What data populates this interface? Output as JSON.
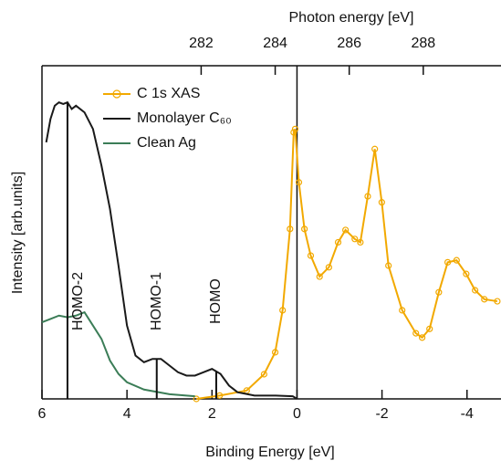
{
  "chart_data": {
    "type": "line",
    "xlabel": "Binding Energy [eV]",
    "x2label": "Photon energy [eV]",
    "ylabel": "Intensity [arb.units]",
    "xlim": [
      6,
      -4.8
    ],
    "xticks": [
      6,
      4,
      2,
      0,
      -2,
      -4
    ],
    "x2lim": [
      277.7,
      290.1
    ],
    "x2ticks": [
      282,
      284,
      286,
      288
    ],
    "ylim": [
      0,
      100
    ],
    "series": [
      {
        "name": "C 1s XAS",
        "color": "#f2a900",
        "axis": "x2",
        "marker": "circle",
        "x": [
          281.87,
          282.5,
          283.23,
          283.7,
          284.0,
          284.2,
          284.4,
          284.5,
          284.54,
          284.64,
          284.79,
          284.96,
          285.2,
          285.45,
          285.7,
          285.9,
          286.15,
          286.3,
          286.5,
          286.69,
          286.88,
          287.06,
          287.43,
          287.8,
          287.97,
          288.17,
          288.42,
          288.66,
          288.9,
          289.16,
          289.4,
          289.65,
          290.0
        ],
        "values": [
          0,
          1,
          2.5,
          7.4,
          14,
          26.6,
          51,
          80,
          81,
          65,
          51,
          43,
          36.7,
          39.5,
          47,
          50.7,
          48,
          47,
          60.8,
          75,
          59,
          40,
          26.6,
          19.7,
          18.4,
          21,
          32,
          41,
          41.6,
          37.5,
          32.6,
          29.9,
          29.3
        ]
      },
      {
        "name": "Monolayer C₆₀",
        "color": "#1a1a1a",
        "x": [
          5.9,
          5.8,
          5.7,
          5.6,
          5.5,
          5.4,
          5.3,
          5.2,
          5.0,
          4.8,
          4.6,
          4.4,
          4.2,
          4.0,
          3.8,
          3.6,
          3.4,
          3.2,
          3.0,
          2.8,
          2.6,
          2.4,
          2.2,
          2.0,
          1.8,
          1.6,
          1.4,
          1.2,
          1.0,
          0.5,
          0.1,
          0.0
        ],
        "values": [
          77,
          84,
          88,
          89,
          88.5,
          89,
          87,
          88,
          86,
          81,
          70,
          57,
          40,
          22,
          13,
          11,
          12,
          12,
          10,
          8,
          7,
          7,
          8,
          9,
          7.5,
          4,
          2,
          1.5,
          1,
          1,
          0.8,
          0
        ]
      },
      {
        "name": "Clean Ag",
        "color": "#3b7d57",
        "x": [
          6.0,
          5.8,
          5.6,
          5.4,
          5.2,
          5.0,
          4.8,
          4.6,
          4.4,
          4.2,
          4.0,
          3.6,
          3.0,
          2.4
        ],
        "values": [
          23,
          24,
          25,
          24.5,
          25,
          26,
          22,
          18,
          11.5,
          7.5,
          5,
          2.8,
          1.4,
          0.8
        ]
      }
    ],
    "annotations": [
      {
        "text": "HOMO-2",
        "x": 5.4
      },
      {
        "text": "HOMO-1",
        "x": 3.3
      },
      {
        "text": "HOMO",
        "x": 1.9
      }
    ]
  }
}
